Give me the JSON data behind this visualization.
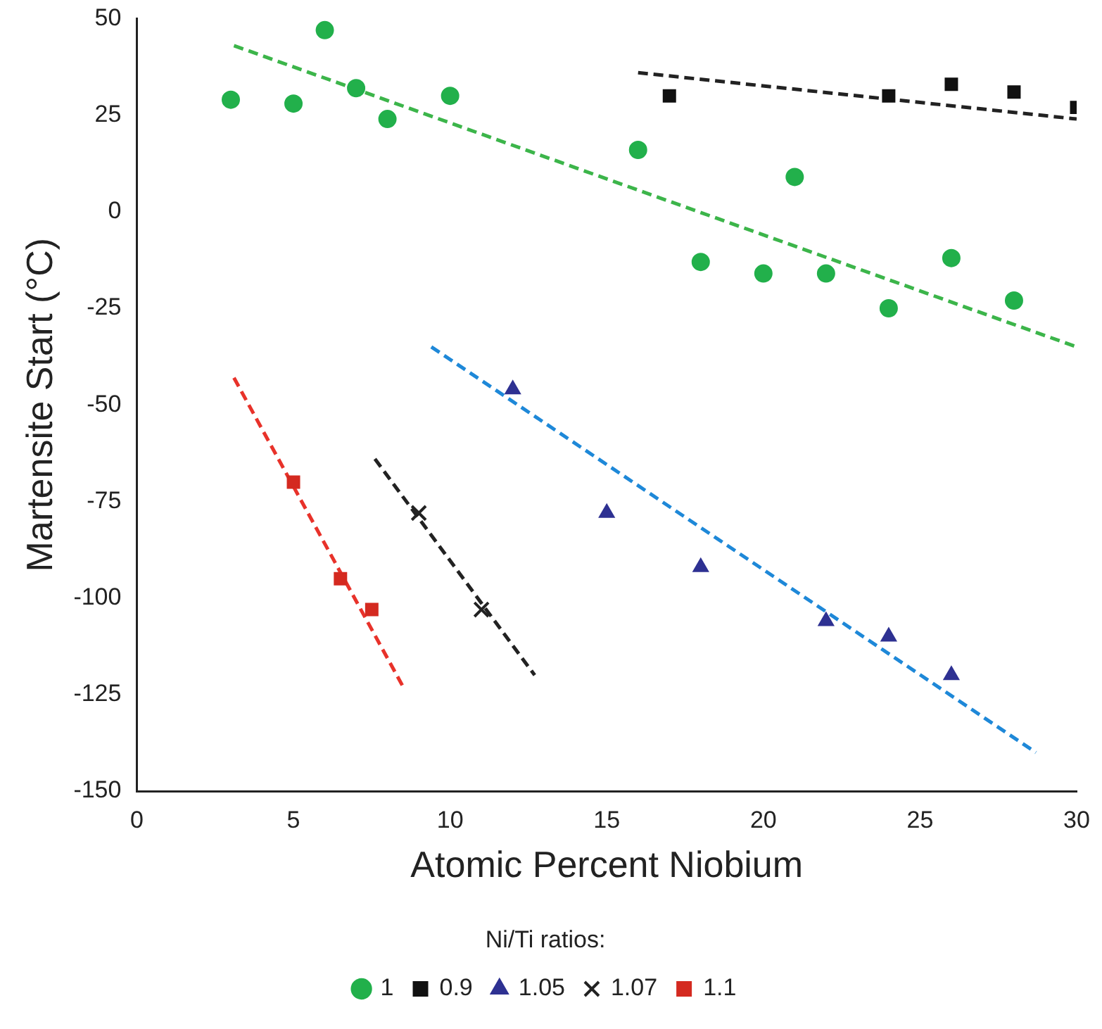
{
  "chart_data": {
    "type": "scatter",
    "xlabel": "Atomic Percent Niobium",
    "ylabel": "Martensite Start (°C)",
    "legend_title": "Ni/Ti ratios:",
    "legend": "bottom",
    "grid": false,
    "xlim": [
      0,
      30
    ],
    "xticks": [
      0,
      5,
      10,
      15,
      20,
      25,
      30
    ],
    "ylim": [
      -150,
      50
    ],
    "yticks": [
      -150,
      -125,
      -100,
      -75,
      -50,
      -25,
      0,
      25,
      50
    ],
    "series": [
      {
        "name": "1",
        "color": "#22b04b",
        "marker": "circle",
        "x": [
          3,
          5,
          6,
          7,
          8,
          10,
          16,
          18,
          20,
          21,
          22,
          24,
          26,
          28
        ],
        "values": [
          29,
          28,
          47,
          32,
          24,
          30,
          16,
          -13,
          -16,
          9,
          -16,
          -25,
          -12,
          -23
        ]
      },
      {
        "name": "0.9",
        "color": "#111111",
        "marker": "square",
        "x": [
          17,
          24,
          26,
          28,
          30
        ],
        "values": [
          30,
          30,
          33,
          31,
          27
        ]
      },
      {
        "name": "1.05",
        "color": "#2e3192",
        "marker": "triangle",
        "x": [
          12,
          15,
          18,
          22,
          24,
          26
        ],
        "values": [
          -46,
          -78,
          -92,
          -106,
          -110,
          -120
        ]
      },
      {
        "name": "1.07",
        "color": "#222222",
        "marker": "cross",
        "x": [
          9,
          11
        ],
        "values": [
          -78,
          -103
        ]
      },
      {
        "name": "1.1",
        "color": "#d42a20",
        "marker": "square",
        "x": [
          5,
          6.5,
          7.5
        ],
        "values": [
          -70,
          -95,
          -103
        ]
      },
      {
        "type": "line",
        "color": "#3cb54a",
        "line_style": "dashed",
        "marker": "none",
        "x": [
          3.1,
          30
        ],
        "values": [
          43,
          -35
        ]
      },
      {
        "type": "line",
        "color": "#222222",
        "line_style": "dashed",
        "marker": "none",
        "x": [
          16,
          30
        ],
        "values": [
          36,
          24
        ]
      },
      {
        "type": "line",
        "color": "#1e88d8",
        "line_style": "dashed",
        "marker": "none",
        "x": [
          9.4,
          28.7
        ],
        "values": [
          -35,
          -140
        ]
      },
      {
        "type": "line",
        "color": "#222222",
        "line_style": "dashed",
        "marker": "none",
        "x": [
          7.6,
          12.7
        ],
        "values": [
          -64,
          -120
        ]
      },
      {
        "type": "line",
        "color": "#e8322a",
        "line_style": "dashed",
        "marker": "none",
        "x": [
          3.1,
          8.5
        ],
        "values": [
          -43,
          -123
        ]
      }
    ]
  }
}
